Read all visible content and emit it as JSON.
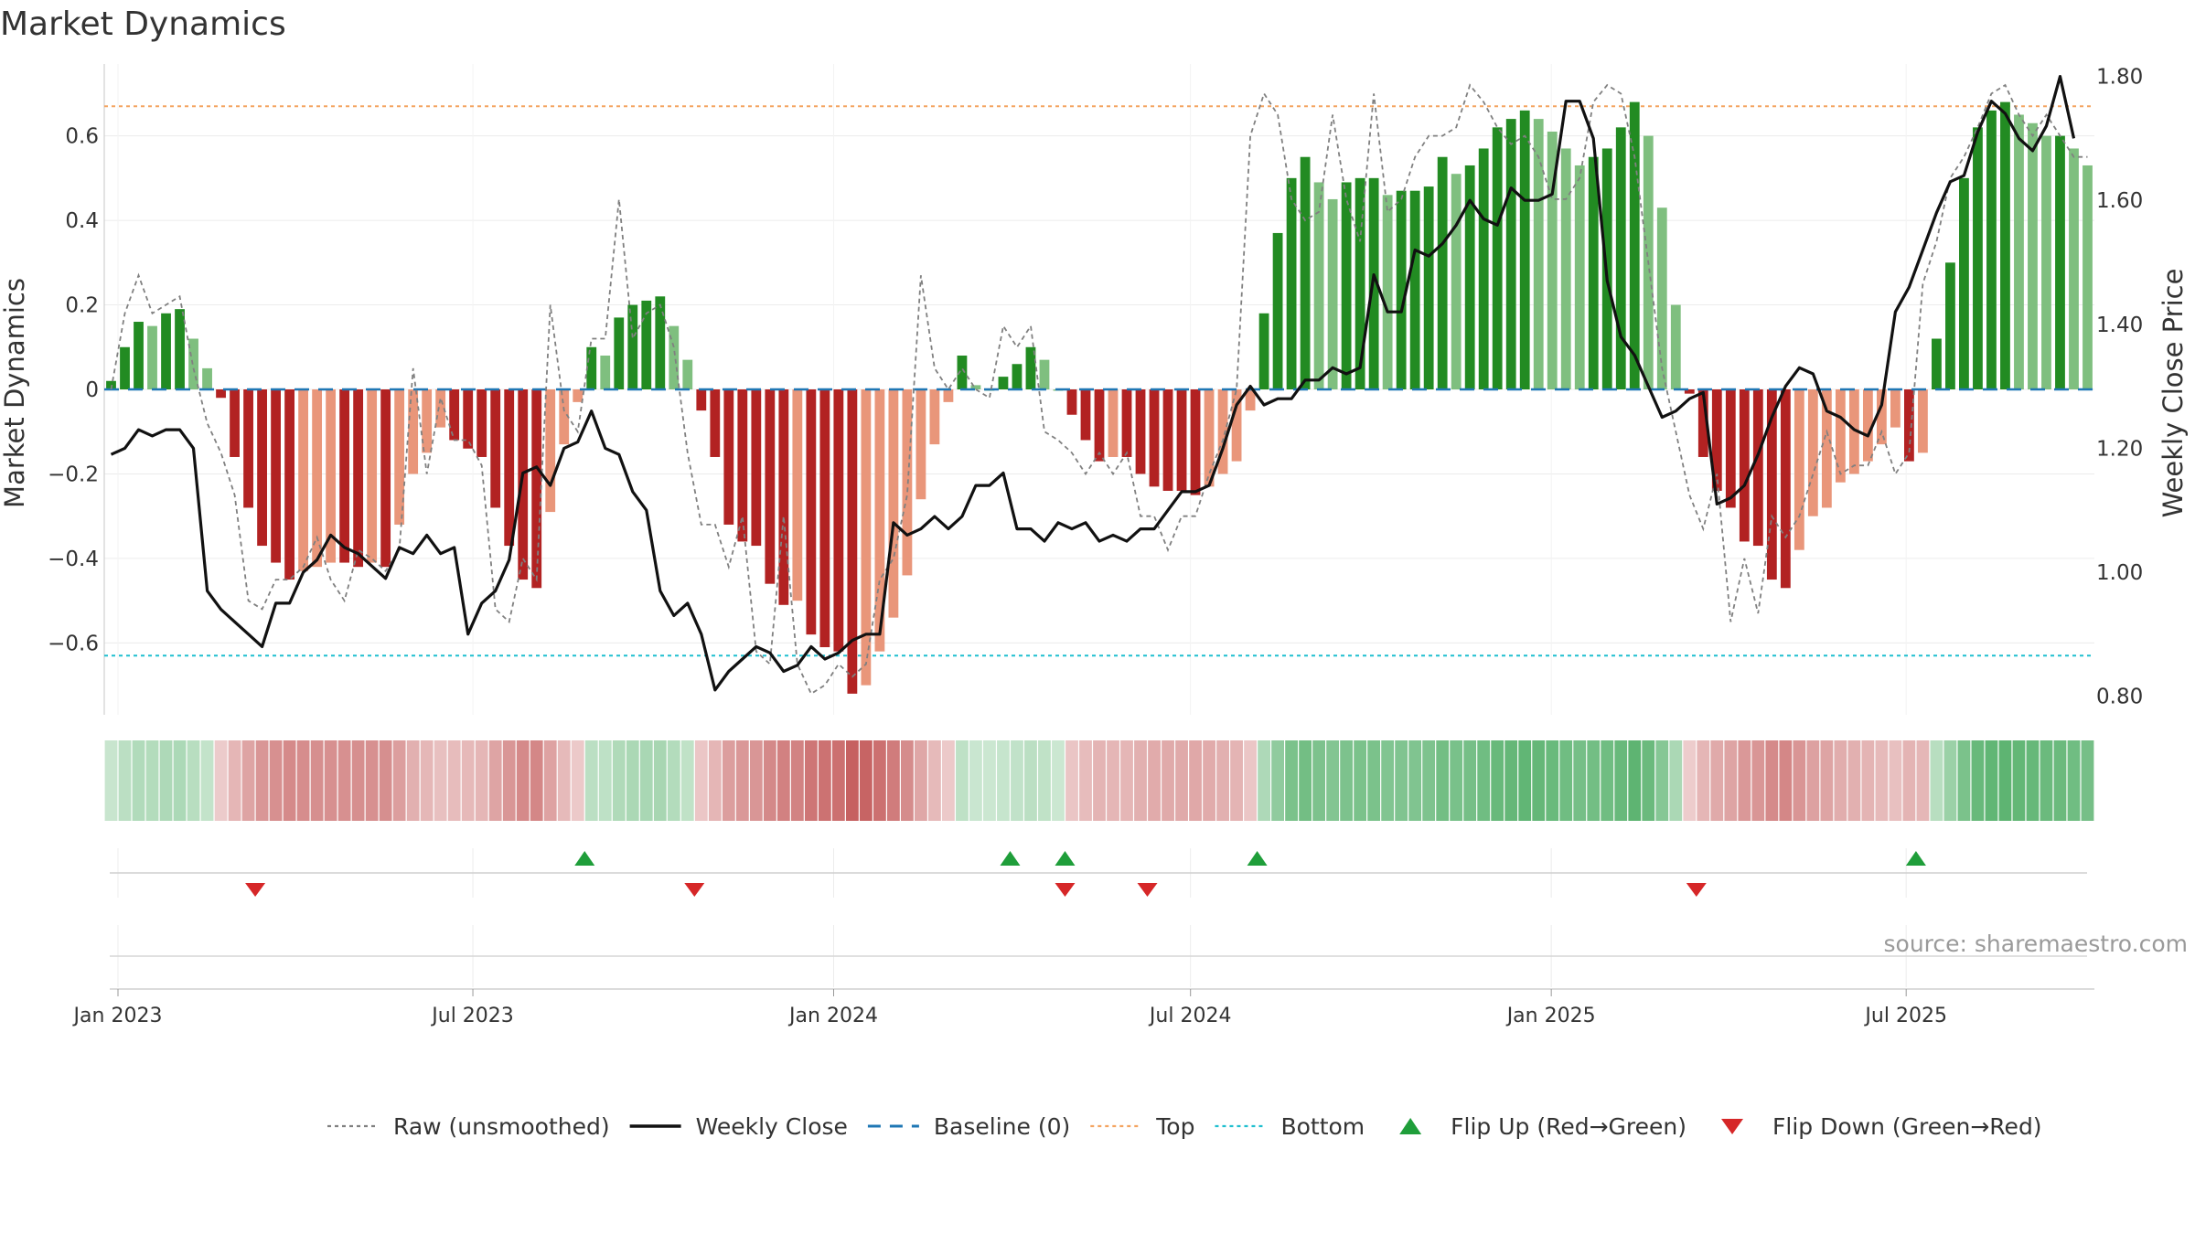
{
  "title": "Market Dynamics",
  "source": "source: sharemaestro.com",
  "colors": {
    "strong_green": "#228b22",
    "light_green": "#7fbf7f",
    "strong_red": "#b22222",
    "light_red": "#e9967a",
    "raw": "#808080",
    "close": "#111111",
    "baseline": "#1f77b4",
    "top": "#f4a460",
    "bottom": "#1fbfcf",
    "flip_up": "#1f9e3a",
    "flip_down": "#d62728"
  },
  "chart_data": {
    "type": "bar",
    "title": "Market Dynamics",
    "ylabel_left": "Market Dynamics",
    "ylabel_right": "Weekly Close Price",
    "ylim_left": [
      -0.77,
      0.77
    ],
    "ylim_right": [
      0.77,
      1.82
    ],
    "yticks_left": [
      "0.6",
      "0.4",
      "0.2",
      "0",
      "−0.2",
      "−0.4",
      "−0.6"
    ],
    "yticks_right": [
      "1.80",
      "1.60",
      "1.40",
      "1.20",
      "1.00",
      "0.80"
    ],
    "x_ticks": [
      "Jan 2023",
      "Jul 2023",
      "Jan 2024",
      "Jul 2024",
      "Jan 2025",
      "Jul 2025"
    ],
    "x_tick_dates": [
      "2023-01-01",
      "2023-07-01",
      "2024-01-01",
      "2024-07-01",
      "2025-01-01",
      "2025-07-01"
    ],
    "first_week": "2022-12-25",
    "week_count": 140,
    "top_level": 0.67,
    "bottom_level": -0.63,
    "baseline": 0,
    "bars": [
      0.02,
      0.1,
      0.16,
      0.15,
      0.18,
      0.19,
      0.12,
      0.05,
      -0.02,
      -0.16,
      -0.28,
      -0.37,
      -0.41,
      -0.45,
      -0.43,
      -0.42,
      -0.41,
      -0.41,
      -0.42,
      -0.41,
      -0.42,
      -0.32,
      -0.2,
      -0.15,
      -0.09,
      -0.12,
      -0.14,
      -0.16,
      -0.28,
      -0.37,
      -0.45,
      -0.47,
      -0.29,
      -0.13,
      -0.03,
      0.1,
      0.08,
      0.17,
      0.2,
      0.21,
      0.22,
      0.15,
      0.07,
      -0.05,
      -0.16,
      -0.32,
      -0.36,
      -0.37,
      -0.46,
      -0.51,
      -0.5,
      -0.58,
      -0.61,
      -0.62,
      -0.72,
      -0.7,
      -0.62,
      -0.54,
      -0.44,
      -0.26,
      -0.13,
      -0.03,
      0.08,
      0.01,
      0,
      0.03,
      0.06,
      0.1,
      0.07,
      0,
      -0.06,
      -0.12,
      -0.17,
      -0.16,
      -0.16,
      -0.2,
      -0.23,
      -0.24,
      -0.24,
      -0.25,
      -0.23,
      -0.2,
      -0.17,
      -0.05,
      0.18,
      0.37,
      0.5,
      0.55,
      0.49,
      0.45,
      0.49,
      0.5,
      0.5,
      0.46,
      0.47,
      0.47,
      0.48,
      0.55,
      0.51,
      0.53,
      0.57,
      0.62,
      0.64,
      0.66,
      0.64,
      0.61,
      0.57,
      0.53,
      0.55,
      0.57,
      0.62,
      0.68,
      0.6,
      0.43,
      0.2,
      -0.01,
      -0.16,
      -0.24,
      -0.28,
      -0.36,
      -0.37,
      -0.45,
      -0.47,
      -0.38,
      -0.3,
      -0.28,
      -0.22,
      -0.2,
      -0.17,
      -0.13,
      -0.09,
      -0.17,
      -0.15,
      0.12,
      0.3,
      0.5,
      0.62,
      0.66,
      0.68,
      0.65,
      0.63,
      0.6,
      0.6,
      0.57,
      0.53
    ],
    "raw": [
      0,
      0.18,
      0.27,
      0.18,
      0.2,
      0.22,
      0.05,
      -0.08,
      -0.15,
      -0.25,
      -0.5,
      -0.52,
      -0.45,
      -0.45,
      -0.42,
      -0.35,
      -0.45,
      -0.5,
      -0.38,
      -0.4,
      -0.43,
      -0.38,
      0.05,
      -0.2,
      -0.02,
      -0.12,
      -0.12,
      -0.18,
      -0.52,
      -0.55,
      -0.4,
      -0.45,
      0.2,
      -0.05,
      -0.1,
      0.12,
      0.12,
      0.45,
      0.12,
      0.18,
      0.2,
      0.1,
      -0.15,
      -0.32,
      -0.32,
      -0.42,
      -0.3,
      -0.62,
      -0.65,
      -0.3,
      -0.65,
      -0.72,
      -0.7,
      -0.65,
      -0.68,
      -0.65,
      -0.45,
      -0.4,
      -0.25,
      0.27,
      0.05,
      0,
      0.05,
      0,
      -0.02,
      0.15,
      0.1,
      0.15,
      -0.1,
      -0.12,
      -0.15,
      -0.2,
      -0.15,
      -0.2,
      -0.15,
      -0.3,
      -0.3,
      -0.38,
      -0.3,
      -0.3,
      -0.2,
      -0.12,
      0,
      0.6,
      0.7,
      0.65,
      0.45,
      0.4,
      0.42,
      0.65,
      0.45,
      0.35,
      0.7,
      0.42,
      0.45,
      0.55,
      0.6,
      0.6,
      0.62,
      0.72,
      0.68,
      0.62,
      0.58,
      0.6,
      0.55,
      0.45,
      0.45,
      0.5,
      0.68,
      0.72,
      0.7,
      0.55,
      0.3,
      0.05,
      -0.1,
      -0.25,
      -0.33,
      -0.2,
      -0.55,
      -0.4,
      -0.53,
      -0.3,
      -0.35,
      -0.3,
      -0.2,
      -0.1,
      -0.2,
      -0.18,
      -0.18,
      -0.1,
      -0.2,
      -0.15,
      0.25,
      0.35,
      0.5,
      0.55,
      0.62,
      0.7,
      0.72,
      0.65,
      0.6,
      0.65,
      0.6,
      0.55,
      0.55
    ],
    "close": [
      1.19,
      1.2,
      1.23,
      1.22,
      1.23,
      1.23,
      1.2,
      0.97,
      0.94,
      0.92,
      0.9,
      0.88,
      0.95,
      0.95,
      1.0,
      1.02,
      1.06,
      1.04,
      1.03,
      1.01,
      0.99,
      1.04,
      1.03,
      1.06,
      1.03,
      1.04,
      0.9,
      0.95,
      0.97,
      1.02,
      1.16,
      1.17,
      1.14,
      1.2,
      1.21,
      1.26,
      1.2,
      1.19,
      1.13,
      1.1,
      0.97,
      0.93,
      0.95,
      0.9,
      0.81,
      0.84,
      0.86,
      0.88,
      0.87,
      0.84,
      0.85,
      0.88,
      0.86,
      0.87,
      0.89,
      0.9,
      0.9,
      1.08,
      1.06,
      1.07,
      1.09,
      1.07,
      1.09,
      1.14,
      1.14,
      1.16,
      1.07,
      1.07,
      1.05,
      1.08,
      1.07,
      1.08,
      1.05,
      1.06,
      1.05,
      1.07,
      1.07,
      1.1,
      1.13,
      1.13,
      1.14,
      1.2,
      1.27,
      1.3,
      1.27,
      1.28,
      1.28,
      1.31,
      1.31,
      1.33,
      1.32,
      1.33,
      1.48,
      1.42,
      1.42,
      1.52,
      1.51,
      1.53,
      1.56,
      1.6,
      1.57,
      1.56,
      1.62,
      1.6,
      1.6,
      1.61,
      1.76,
      1.76,
      1.7,
      1.47,
      1.38,
      1.35,
      1.3,
      1.25,
      1.26,
      1.28,
      1.29,
      1.11,
      1.12,
      1.14,
      1.19,
      1.25,
      1.3,
      1.33,
      1.32,
      1.26,
      1.25,
      1.23,
      1.22,
      1.27,
      1.42,
      1.46,
      1.52,
      1.58,
      1.63,
      1.64,
      1.71,
      1.76,
      1.74,
      1.7,
      1.68,
      1.72,
      1.8,
      1.7
    ],
    "flips_up": [
      "2023-08-27",
      "2024-03-31",
      "2024-04-28",
      "2024-08-04",
      "2025-07-06"
    ],
    "flips_down": [
      "2023-03-12",
      "2023-10-22",
      "2024-04-28",
      "2024-06-09",
      "2025-03-16"
    ]
  },
  "legend": [
    {
      "label": "Raw (unsmoothed)",
      "kind": "dotted-line",
      "color_key": "raw"
    },
    {
      "label": "Weekly Close",
      "kind": "solid-line",
      "color_key": "close"
    },
    {
      "label": "Baseline (0)",
      "kind": "dashed-line",
      "color_key": "baseline"
    },
    {
      "label": "Top",
      "kind": "dotted-line",
      "color_key": "top"
    },
    {
      "label": "Bottom",
      "kind": "dotted-line",
      "color_key": "bottom"
    },
    {
      "label": "Flip Up (Red→Green)",
      "kind": "triangle-up",
      "color_key": "flip_up"
    },
    {
      "label": "Flip Down (Green→Red)",
      "kind": "triangle-down",
      "color_key": "flip_down"
    }
  ]
}
